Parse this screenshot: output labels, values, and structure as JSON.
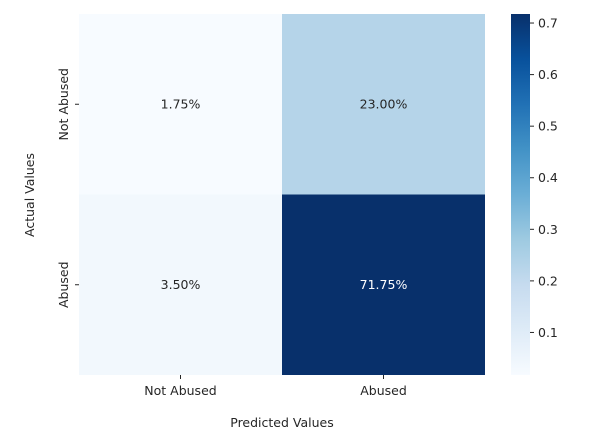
{
  "chart_data": {
    "type": "heatmap",
    "title": "",
    "xlabel": "Predicted Values",
    "ylabel": "Actual Values",
    "x_categories": [
      "Not Abused",
      "Abused"
    ],
    "y_categories": [
      "Not Abused",
      "Abused"
    ],
    "cells": [
      {
        "row": 0,
        "col": 0,
        "value": 0.0175,
        "label": "1.75%"
      },
      {
        "row": 0,
        "col": 1,
        "value": 0.23,
        "label": "23.00%"
      },
      {
        "row": 1,
        "col": 0,
        "value": 0.035,
        "label": "3.50%"
      },
      {
        "row": 1,
        "col": 1,
        "value": 0.7175,
        "label": "71.75%"
      }
    ],
    "colorbar": {
      "colormap": "Blues",
      "range": [
        0.0175,
        0.7175
      ],
      "ticks": [
        0.1,
        0.2,
        0.3,
        0.4,
        0.5,
        0.6,
        0.7
      ],
      "tick_labels": [
        "0.1",
        "0.2",
        "0.3",
        "0.4",
        "0.5",
        "0.6",
        "0.7"
      ]
    },
    "colors": {
      "blues_stops": [
        "#f7fbff",
        "#deebf7",
        "#c6dbef",
        "#9ecae1",
        "#6baed6",
        "#4292c6",
        "#2171b5",
        "#08519c",
        "#08306b"
      ],
      "text_dark": "#262626",
      "text_light": "#ffffff"
    }
  }
}
